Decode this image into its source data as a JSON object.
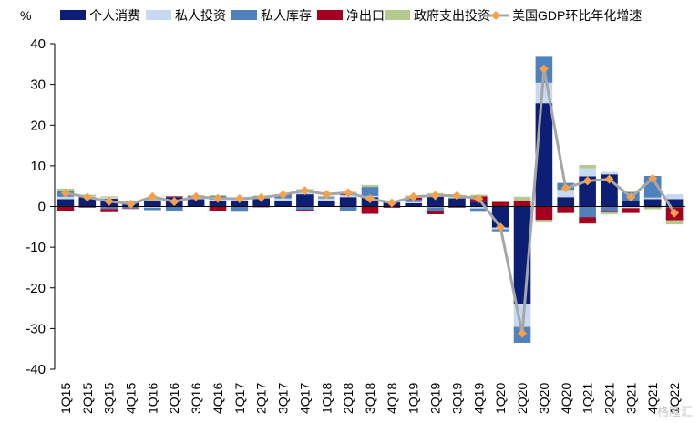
{
  "unit_label": "%",
  "watermark": "格隆汇",
  "chart_data": {
    "type": "bar",
    "stacked": true,
    "title": "",
    "xlabel": "",
    "ylabel": "%",
    "ylim": [
      -40,
      40
    ],
    "yticks": [
      40,
      30,
      20,
      10,
      0,
      -10,
      -20,
      -30,
      -40
    ],
    "grid": false,
    "legend_position": "top",
    "categories": [
      "1Q15",
      "2Q15",
      "3Q15",
      "4Q15",
      "1Q16",
      "2Q16",
      "3Q16",
      "4Q16",
      "1Q17",
      "2Q17",
      "3Q17",
      "4Q17",
      "1Q18",
      "2Q18",
      "3Q18",
      "4Q18",
      "1Q19",
      "2Q19",
      "3Q19",
      "4Q19",
      "1Q20",
      "2Q20",
      "3Q20",
      "4Q20",
      "1Q21",
      "2Q21",
      "3Q21",
      "4Q21",
      "1Q22"
    ],
    "series": [
      {
        "name": "个人消费",
        "kind": "bar",
        "color": "#0c1f75",
        "values": [
          1.8,
          2.3,
          1.9,
          1.1,
          1.3,
          2.3,
          1.8,
          1.4,
          1.3,
          2.0,
          1.4,
          3.0,
          1.4,
          2.3,
          2.3,
          1.0,
          0.8,
          2.5,
          2.0,
          1.1,
          -5.2,
          -24.0,
          25.4,
          2.3,
          7.4,
          7.9,
          1.4,
          1.8,
          1.8
        ]
      },
      {
        "name": "私人投资",
        "kind": "bar",
        "color": "#c6d9f0",
        "values": [
          0.6,
          0.2,
          0.3,
          -0.1,
          -0.3,
          -0.1,
          0.4,
          0.3,
          0.5,
          0.5,
          0.6,
          0.8,
          0.6,
          0.5,
          0.3,
          0.2,
          0.3,
          -0.2,
          -0.1,
          -0.5,
          -0.4,
          -5.6,
          5.0,
          1.8,
          2.0,
          0.6,
          -0.4,
          0.4,
          1.2
        ]
      },
      {
        "name": "私人库存",
        "kind": "bar",
        "color": "#4f81bd",
        "values": [
          1.4,
          -0.2,
          -0.6,
          -0.4,
          -0.6,
          -1.1,
          0.4,
          0.9,
          -1.3,
          0.1,
          0.8,
          -0.8,
          0.3,
          -1.0,
          2.2,
          0.1,
          0.6,
          -1.0,
          -0.1,
          -0.8,
          -0.5,
          -3.9,
          6.6,
          1.7,
          -2.6,
          -1.3,
          2.1,
          5.3,
          -0.2
        ]
      },
      {
        "name": "净出口",
        "kind": "bar",
        "color": "#a50021",
        "values": [
          -1.2,
          -0.1,
          -0.8,
          -0.1,
          0.1,
          0.2,
          -0.1,
          -1.1,
          0.3,
          -0.2,
          0.1,
          -0.3,
          0.0,
          0.4,
          -1.8,
          -0.3,
          0.5,
          -0.7,
          -0.1,
          1.4,
          1.1,
          1.5,
          -3.3,
          -1.6,
          -1.6,
          -0.2,
          -1.2,
          -0.2,
          -3.2
        ]
      },
      {
        "name": "政府支出投资",
        "kind": "bar",
        "color": "#b3cc8e",
        "values": [
          0.6,
          0.4,
          0.3,
          0.3,
          0.5,
          0.0,
          0.2,
          0.2,
          0.1,
          0.1,
          0.1,
          0.5,
          0.3,
          0.4,
          0.5,
          0.0,
          0.5,
          0.8,
          0.3,
          0.4,
          0.2,
          0.9,
          -0.6,
          -0.1,
          0.8,
          -0.4,
          0.2,
          -0.5,
          -1.0
        ]
      },
      {
        "name": "美国GDP环比年化增速",
        "kind": "line",
        "color": "#a6a6a6",
        "marker_color": "#f5a04a",
        "values": [
          3.3,
          2.3,
          1.3,
          0.6,
          2.4,
          1.2,
          2.4,
          2.0,
          1.9,
          2.2,
          2.9,
          3.9,
          3.0,
          3.4,
          1.9,
          0.9,
          2.4,
          2.7,
          2.7,
          1.9,
          -5.1,
          -31.2,
          33.8,
          4.5,
          6.3,
          6.7,
          2.3,
          6.9,
          -1.6
        ]
      }
    ]
  }
}
